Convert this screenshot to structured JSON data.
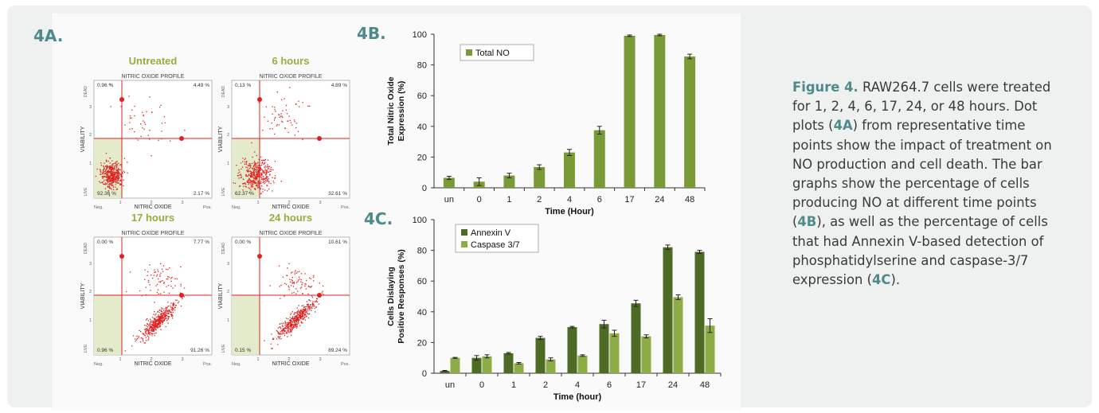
{
  "panel_labels": {
    "a": "4A.",
    "b": "4B.",
    "c": "4C."
  },
  "colors": {
    "teal": "#4f8a8b",
    "olive": "#7a9a38",
    "dark_green": "#4e6b26",
    "light_green": "#8cad46",
    "dot_red": "#e02020",
    "quad_fill": "#e4ebcb",
    "title_olive": "#9aab3c"
  },
  "dotplots": [
    {
      "title": "Untreated",
      "header": "NITRIC OXIDE PROFILE",
      "q_ul": "0.96 %",
      "q_ur": "4.49 %",
      "q_ll": "92.36 %",
      "q_lr": "2.17 %",
      "xlabel": "NITRIC OXIDE",
      "ylabel": "VIABILITY",
      "x_left": "Neg.",
      "x_right": "Pos.",
      "y_top": "DEAD",
      "y_bottom": "LIVE",
      "ticks": [
        "1",
        "2",
        "3"
      ],
      "pattern": "untreated"
    },
    {
      "title": "6 hours",
      "header": "NITRIC OXIDE PROFILE",
      "q_ul": "0.13 %",
      "q_ur": "4.89 %",
      "q_ll": "62.37 %",
      "q_lr": "32.61 %",
      "xlabel": "NITRIC OXIDE",
      "ylabel": "VIABILITY",
      "x_left": "Neg.",
      "x_right": "Pos.",
      "y_top": "DEAD",
      "y_bottom": "LIVE",
      "ticks": [
        "1",
        "2",
        "3"
      ],
      "pattern": "6h"
    },
    {
      "title": "17 hours",
      "header": "NITRIC OXIDE PROFILE",
      "q_ul": "0.00 %",
      "q_ur": "7.77 %",
      "q_ll": "0.96 %",
      "q_lr": "91.26 %",
      "xlabel": "NITRIC OXIDE",
      "ylabel": "VIABILITY",
      "x_left": "Neg.",
      "x_right": "Pos.",
      "y_top": "DEAD",
      "y_bottom": "LIVE",
      "ticks": [
        "1",
        "2",
        "3"
      ],
      "pattern": "17h"
    },
    {
      "title": "24 hours",
      "header": "NITRIC OXIDE PROFILE",
      "q_ul": "0.00 %",
      "q_ur": "10.61 %",
      "q_ll": "0.15 %",
      "q_lr": "89.24 %",
      "xlabel": "NITRIC OXIDE",
      "ylabel": "VIABILITY",
      "x_left": "Neg.",
      "x_right": "Pos.",
      "y_top": "DEAD",
      "y_bottom": "LIVE",
      "ticks": [
        "1",
        "2",
        "3"
      ],
      "pattern": "24h"
    }
  ],
  "chart_data": [
    {
      "type": "bar",
      "categories": [
        "un",
        "0",
        "1",
        "2",
        "4",
        "6",
        "17",
        "24",
        "48"
      ],
      "series": [
        {
          "name": "Total NO",
          "values": [
            6.5,
            4,
            8,
            13.5,
            23,
            37.5,
            99,
            99.5,
            85.5
          ],
          "errors": [
            1,
            2.5,
            1.5,
            1.5,
            2,
            2.5,
            0.5,
            0.5,
            1.5
          ]
        }
      ],
      "xlabel": "Time (Hour)",
      "ylabel": "Total Nitric Oxide Expression (%)",
      "ylim": [
        0,
        100
      ],
      "yticks": [
        0,
        20,
        40,
        60,
        80,
        100
      ],
      "legend": "top-left"
    },
    {
      "type": "bar",
      "categories": [
        "un",
        "0",
        "1",
        "2",
        "4",
        "6",
        "17",
        "24",
        "48"
      ],
      "series": [
        {
          "name": "Annexin V",
          "values": [
            1.5,
            10,
            13,
            23,
            30,
            32,
            45.5,
            82,
            79
          ],
          "errors": [
            0.3,
            1.5,
            0.5,
            1,
            0.5,
            2.5,
            2,
            1.5,
            1
          ]
        },
        {
          "name": "Caspase 3/7",
          "values": [
            10,
            11,
            6.5,
            9,
            11.5,
            26,
            24,
            49.5,
            31
          ],
          "errors": [
            0.3,
            1,
            0.5,
            1,
            0.5,
            2,
            1,
            1.5,
            4.5
          ]
        }
      ],
      "xlabel": "Time (hour)",
      "ylabel": "Cells Dislaying Positive Responses (%)",
      "ylim": [
        0,
        100
      ],
      "yticks": [
        0,
        20,
        40,
        60,
        80,
        100
      ],
      "legend": "top-left"
    }
  ],
  "caption": {
    "fig_label": "Figure 4.",
    "text1": " RAW264.7 cells were treated for 1, 2, 4, 6, 17, 24, or 48 hours. Dot plots (",
    "ref_a": "4A",
    "text2": ") from representative time points show the impact of treatment on NO production and cell death. The bar graphs show the percentage of cells producing NO at different time points (",
    "ref_b": "4B",
    "text3": "), as well as the percentage of cells that had Annexin V-based detection of phosphatidylserine and caspase-3/7 expression (",
    "ref_c": "4C",
    "text4": ")."
  }
}
